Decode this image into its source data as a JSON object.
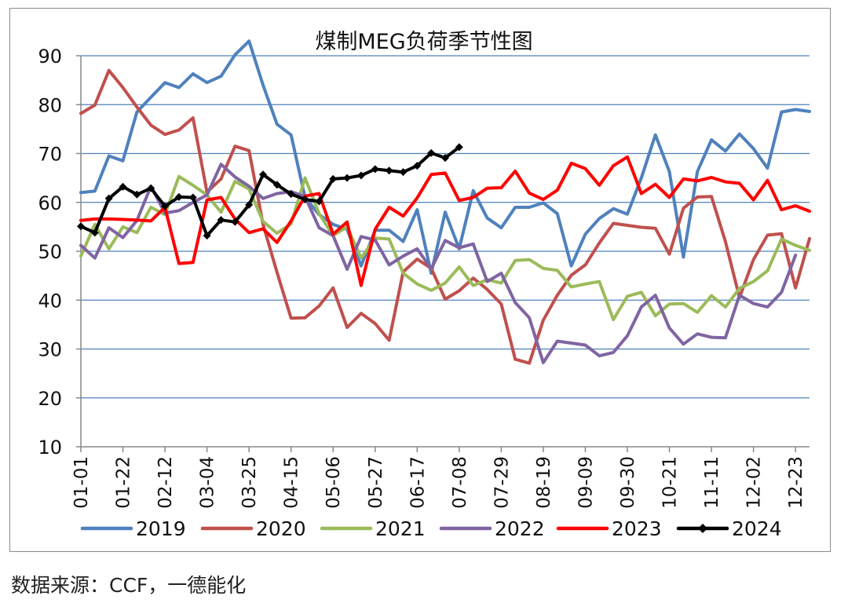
{
  "source_text": "数据来源：CCF，一德能化",
  "colors": {
    "2019": "#4F81BD",
    "2020": "#C0504D",
    "2021": "#9BBB59",
    "2022": "#8064A2",
    "2023": "#FF0000",
    "2024": "#000000",
    "grid": "#4F81BD",
    "axis": "#888888"
  },
  "chart_data": {
    "type": "line",
    "title": "煤制MEG负荷季节性图",
    "xlabel": "",
    "ylabel": "",
    "ylim": [
      10,
      90
    ],
    "yticks": [
      10,
      20,
      30,
      40,
      50,
      60,
      70,
      80,
      90
    ],
    "grid": "horizontal",
    "legend": "bottom",
    "x_labels": [
      "01-01",
      "01-22",
      "02-12",
      "03-04",
      "03-25",
      "04-15",
      "05-06",
      "05-27",
      "06-17",
      "07-08",
      "07-29",
      "08-19",
      "09-09",
      "09-30",
      "10-21",
      "11-11",
      "12-02",
      "12-23"
    ],
    "x_count": 53,
    "series": [
      {
        "name": "2019",
        "values": [
          62,
          62.3,
          69.5,
          68.5,
          78.5,
          81.5,
          84.5,
          83.5,
          86.3,
          84.5,
          85.8,
          90.2,
          93,
          84,
          76,
          73.8,
          61,
          57.5,
          55.5,
          54.5,
          47,
          54.3,
          54.3,
          52,
          58.5,
          45.5,
          58,
          50.5,
          62.4,
          56.8,
          54.8,
          59,
          59,
          59.9,
          57.7,
          47,
          53.5,
          56.7,
          58.7,
          57.6,
          65,
          73.8,
          66.3,
          48.8,
          66.3,
          72.8,
          70.5,
          74,
          71,
          67,
          78.5,
          79,
          78.6
        ]
      },
      {
        "name": "2020",
        "values": [
          78.2,
          79.9,
          87,
          83.5,
          79.5,
          75.8,
          73.9,
          74.8,
          77.3,
          62.1,
          64.8,
          71.5,
          70.6,
          55.5,
          45.7,
          36.3,
          36.4,
          38.8,
          42.5,
          34.4,
          37.3,
          35.2,
          31.8,
          45.8,
          48.4,
          46.5,
          40.2,
          41.9,
          44.5,
          42.2,
          39.2,
          27.9,
          27.1,
          35.9,
          41,
          45.1,
          47.2,
          51.7,
          55.7,
          55.3,
          54.9,
          54.7,
          49.4,
          58.8,
          61.1,
          61.2,
          52,
          40.5,
          48.3,
          53.3,
          53.6,
          42.5,
          52.6
        ]
      },
      {
        "name": "2021",
        "values": [
          49,
          55.5,
          50.5,
          55,
          53.8,
          59,
          57.5,
          65.3,
          63.5,
          61.5,
          58,
          64.3,
          62.7,
          56.1,
          53.7,
          55.6,
          65,
          57.7,
          53.2,
          55,
          48.6,
          52.7,
          52.5,
          45.5,
          43.3,
          42,
          43.5,
          46.8,
          43,
          44.2,
          43.5,
          48.1,
          48.3,
          46.5,
          46.1,
          42.7,
          43.3,
          43.8,
          36,
          40.8,
          41.6,
          36.8,
          39.2,
          39.3,
          37.5,
          40.9,
          38.6,
          42.4,
          43.8,
          46,
          52.5,
          51.2,
          50.2
        ]
      },
      {
        "name": "2022",
        "values": [
          51.2,
          48.6,
          54.8,
          52.8,
          56.3,
          63.3,
          57.8,
          58.3,
          60,
          61.5,
          67.8,
          65.2,
          63.3,
          60.8,
          61.8,
          62.2,
          61.2,
          54.8,
          53.2,
          46.3,
          53,
          52.3,
          47.2,
          49,
          50.5,
          46.4,
          52.2,
          50.7,
          51.5,
          43.8,
          45.5,
          39.5,
          36.4,
          27.2,
          31.6,
          31.2,
          30.8,
          28.6,
          29.3,
          32.7,
          38.6,
          41,
          34.3,
          31,
          33.1,
          32.4,
          32.3,
          41,
          39.3,
          38.6,
          41.6,
          49.2
        ]
      },
      {
        "name": "2023",
        "values": [
          56.3,
          56.6,
          56.6,
          56.5,
          56.4,
          56.2,
          59,
          47.5,
          47.7,
          60.5,
          61,
          56.6,
          53.8,
          54.6,
          51.8,
          56.2,
          61.3,
          61.8,
          53.5,
          56,
          43,
          54.5,
          59,
          57.2,
          60.9,
          65.7,
          66,
          60.4,
          61,
          62.9,
          63,
          66.4,
          61.9,
          60.6,
          62.5,
          68,
          66.9,
          63.5,
          67.5,
          69.3,
          61.8,
          63.7,
          61,
          64.8,
          64.4,
          65.1,
          64.2,
          63.9,
          60.5,
          64.5,
          58.5,
          59.3,
          58.2
        ]
      },
      {
        "name": "2024",
        "values": [
          55.1,
          53.8,
          60.8,
          63.2,
          61.6,
          62.9,
          59.2,
          61.1,
          61,
          53.2,
          56.4,
          56,
          59.5,
          65.7,
          63.6,
          61.7,
          60.6,
          60.2,
          64.8,
          65,
          65.5,
          66.8,
          66.5,
          66.2,
          67.5,
          70.1,
          69.1,
          71.3
        ]
      }
    ]
  }
}
